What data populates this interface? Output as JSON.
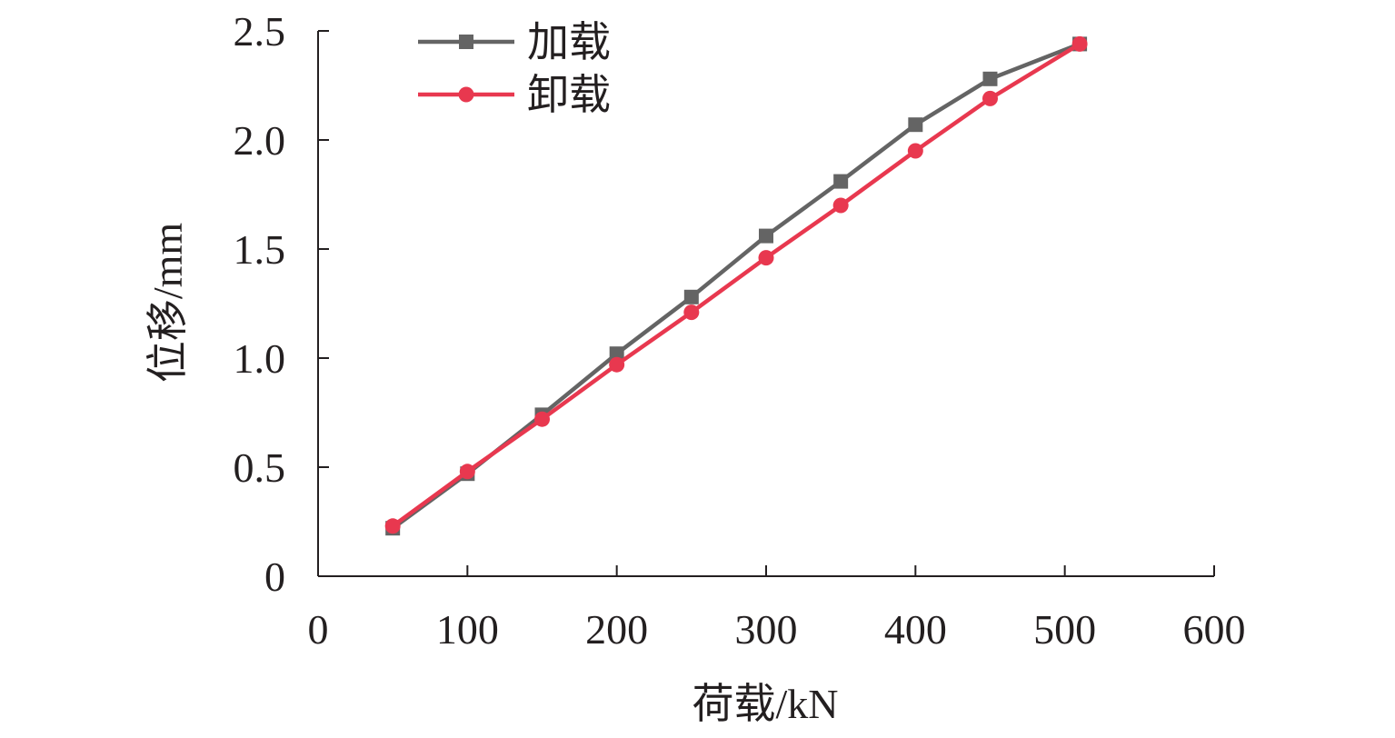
{
  "chart_data": {
    "type": "line",
    "title": "",
    "xlabel": "荷载/kN",
    "ylabel": "位移/mm",
    "xlim": [
      0,
      600
    ],
    "ylim": [
      0,
      2.5
    ],
    "x_ticks": [
      0,
      100,
      200,
      300,
      400,
      500,
      600
    ],
    "x_tick_labels": [
      "0",
      "100",
      "200",
      "300",
      "400",
      "500",
      "600"
    ],
    "y_ticks": [
      0,
      0.5,
      1.0,
      1.5,
      2.0,
      2.5
    ],
    "y_tick_labels": [
      "0",
      "0.5",
      "1.0",
      "1.5",
      "2.0",
      "2.5"
    ],
    "grid": false,
    "legend_position": "top-left",
    "series": [
      {
        "name": "加载",
        "color": "#646464",
        "marker": "square",
        "x": [
          50,
          100,
          150,
          200,
          250,
          300,
          350,
          400,
          450,
          510
        ],
        "y": [
          0.22,
          0.47,
          0.74,
          1.02,
          1.28,
          1.56,
          1.81,
          2.07,
          2.28,
          2.44
        ]
      },
      {
        "name": "卸载",
        "color": "#e8384f",
        "marker": "circle",
        "x": [
          50,
          100,
          150,
          200,
          250,
          300,
          350,
          400,
          450,
          510
        ],
        "y": [
          0.23,
          0.48,
          0.72,
          0.97,
          1.21,
          1.46,
          1.7,
          1.95,
          2.19,
          2.44
        ]
      }
    ]
  }
}
